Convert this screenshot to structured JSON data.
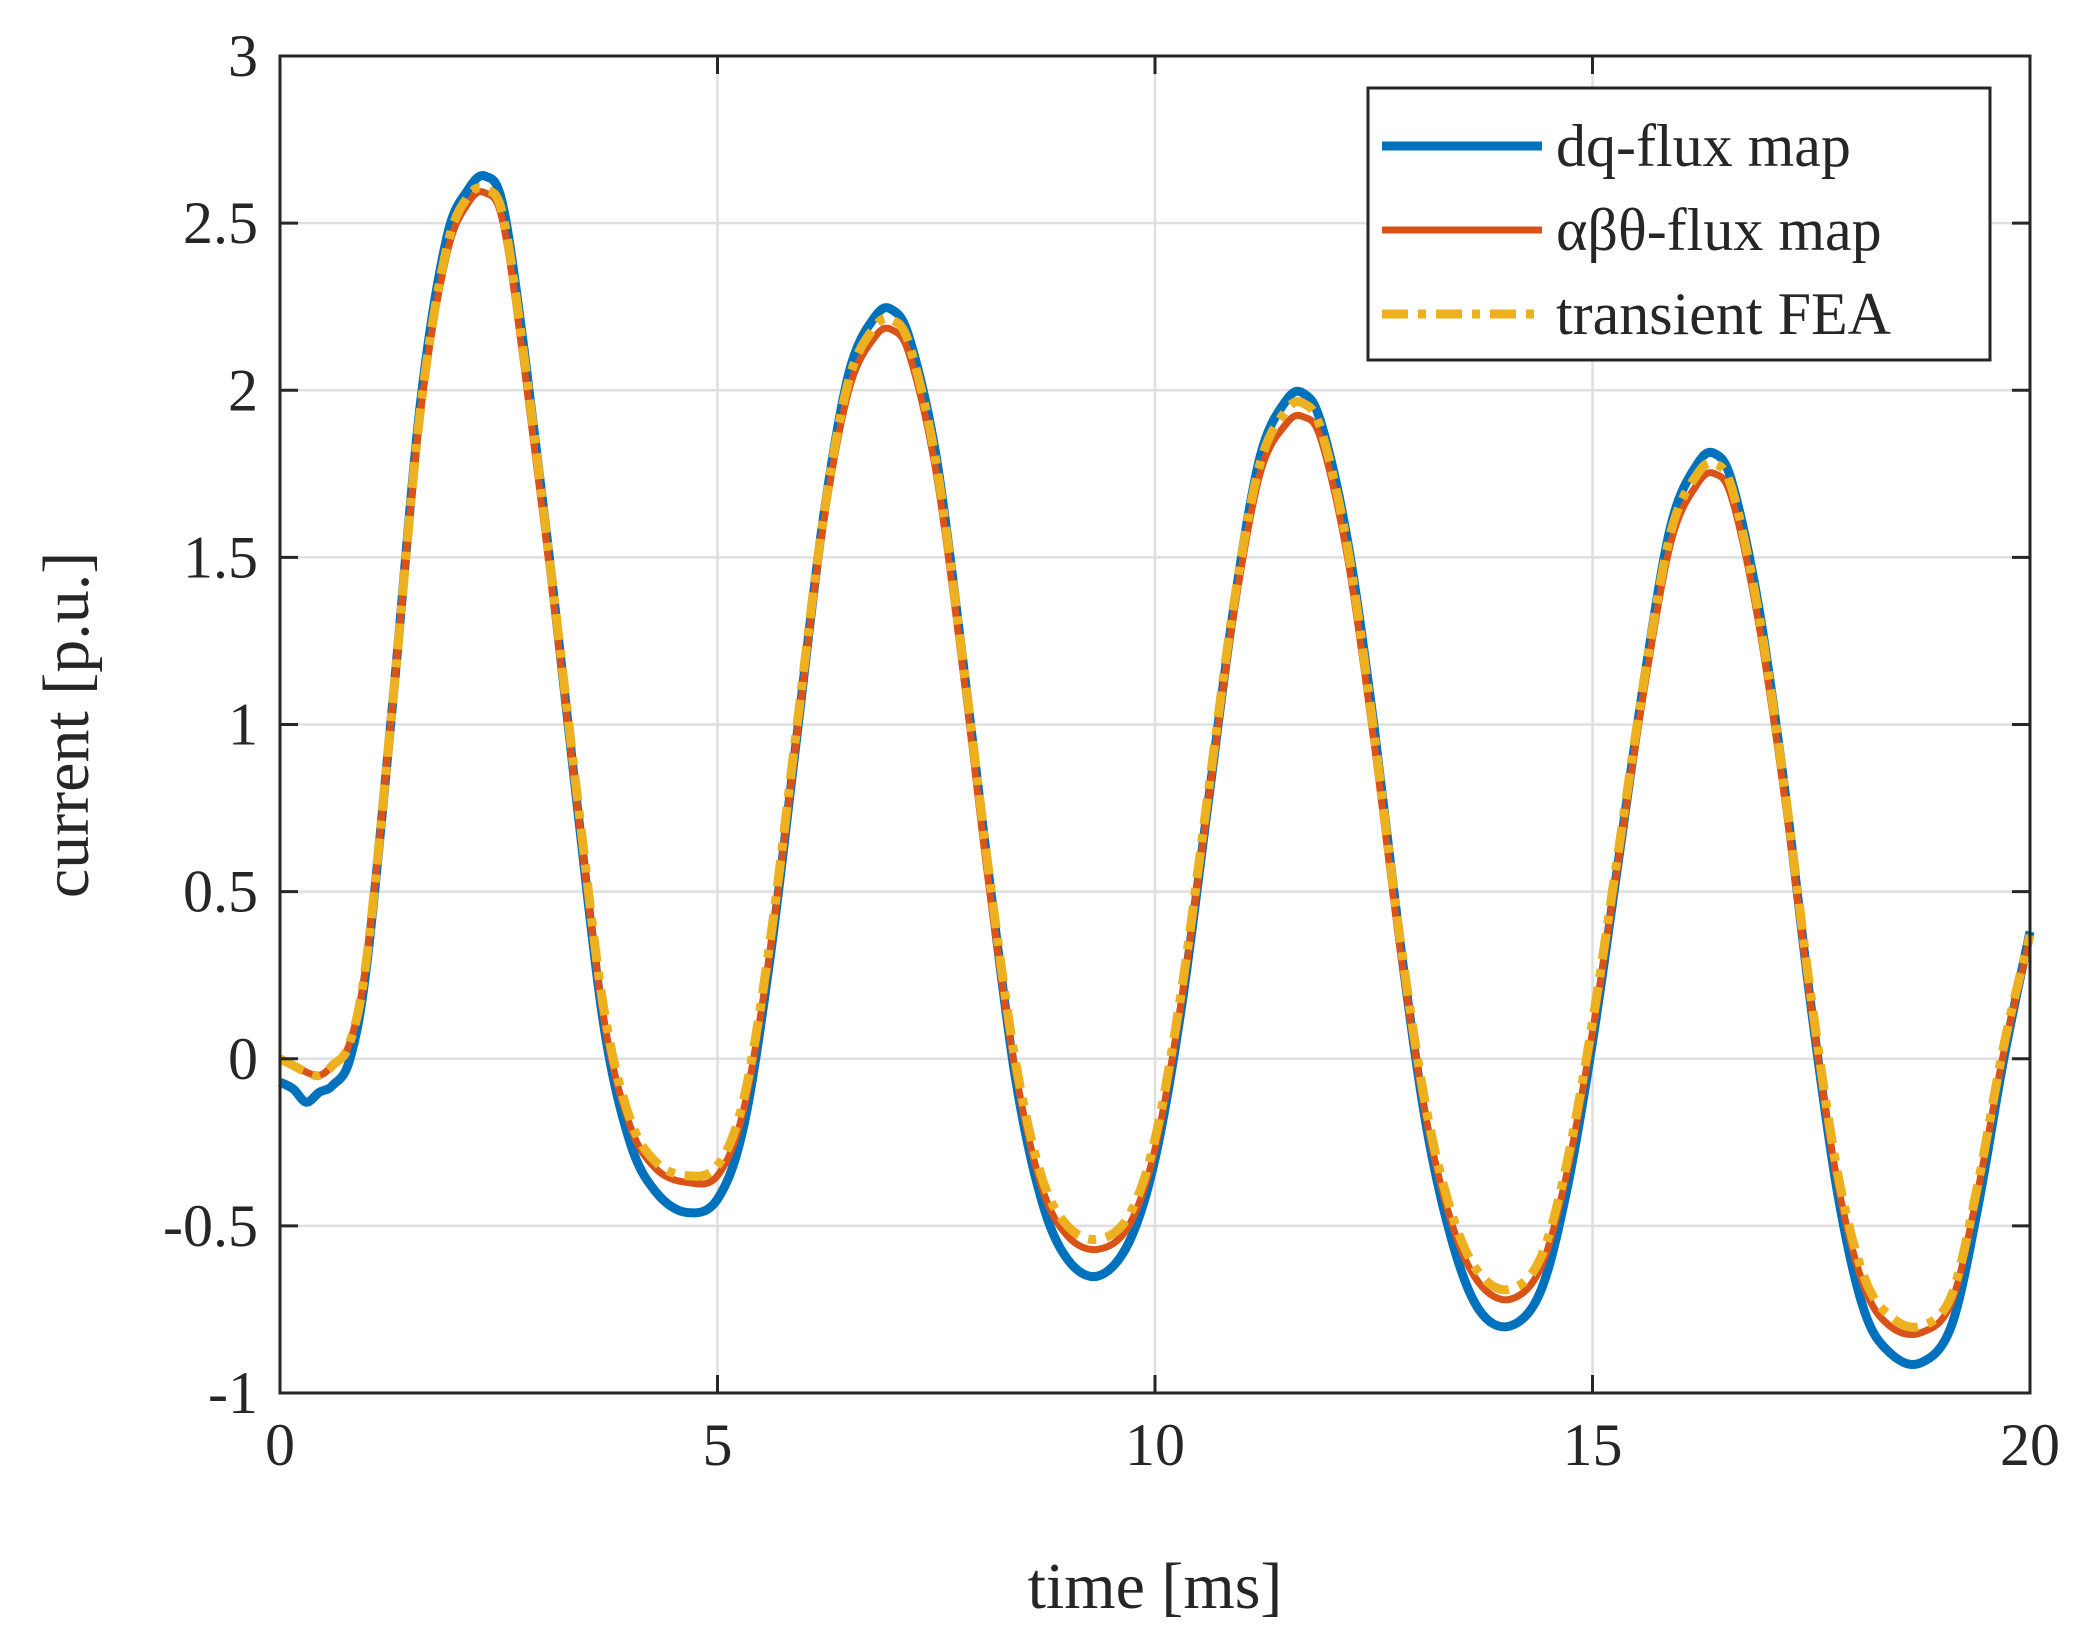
{
  "chart_data": {
    "type": "line",
    "title": "",
    "xlabel": "time [ms]",
    "ylabel": "current [p.u.]",
    "xlim": [
      0,
      20
    ],
    "ylim": [
      -1,
      3
    ],
    "xticks": [
      0,
      5,
      10,
      15,
      20
    ],
    "xtick_labels": [
      "0",
      "5",
      "10",
      "15",
      "20"
    ],
    "yticks": [
      -1,
      -0.5,
      0,
      0.5,
      1,
      1.5,
      2,
      2.5,
      3
    ],
    "ytick_labels": [
      "-1",
      "-0.5",
      "0",
      "0.5",
      "1",
      "1.5",
      "2",
      "2.5",
      "3"
    ],
    "grid": true,
    "legend_position": "top-right",
    "series": [
      {
        "name": "dq-flux map",
        "color": "#0072BD",
        "style": "solid",
        "x": [
          0,
          0.15,
          0.3,
          0.45,
          0.6,
          0.8,
          1.0,
          1.3,
          1.6,
          1.9,
          2.15,
          2.35,
          2.55,
          2.8,
          3.1,
          3.4,
          3.7,
          4.0,
          4.3,
          4.65,
          5.0,
          5.3,
          5.6,
          5.9,
          6.2,
          6.5,
          6.8,
          7.0,
          7.2,
          7.5,
          7.8,
          8.1,
          8.4,
          8.7,
          9.0,
          9.35,
          9.7,
          10.0,
          10.3,
          10.6,
          10.9,
          11.2,
          11.5,
          11.7,
          11.9,
          12.2,
          12.5,
          12.8,
          13.1,
          13.4,
          13.7,
          14.05,
          14.4,
          14.7,
          15.0,
          15.3,
          15.6,
          15.9,
          16.2,
          16.4,
          16.6,
          16.9,
          17.2,
          17.5,
          17.8,
          18.1,
          18.4,
          18.75,
          19.1,
          19.4,
          19.7,
          20.0
        ],
        "y": [
          -0.07,
          -0.09,
          -0.13,
          -0.1,
          -0.08,
          0.0,
          0.3,
          1.1,
          1.95,
          2.45,
          2.6,
          2.64,
          2.55,
          2.1,
          1.45,
          0.75,
          0.1,
          -0.25,
          -0.4,
          -0.46,
          -0.42,
          -0.2,
          0.3,
          0.95,
          1.6,
          2.05,
          2.22,
          2.24,
          2.15,
          1.8,
          1.2,
          0.55,
          -0.05,
          -0.42,
          -0.6,
          -0.65,
          -0.55,
          -0.3,
          0.15,
          0.75,
          1.35,
          1.8,
          1.97,
          1.99,
          1.9,
          1.55,
          1.0,
          0.35,
          -0.2,
          -0.55,
          -0.75,
          -0.8,
          -0.7,
          -0.4,
          0.05,
          0.6,
          1.15,
          1.6,
          1.78,
          1.81,
          1.72,
          1.35,
          0.8,
          0.15,
          -0.4,
          -0.75,
          -0.88,
          -0.91,
          -0.8,
          -0.45,
          0.0,
          0.38
        ]
      },
      {
        "name": "αβθ-flux map",
        "color": "#D95319",
        "style": "solid",
        "x": [
          0,
          0.15,
          0.3,
          0.45,
          0.6,
          0.8,
          1.0,
          1.3,
          1.6,
          1.9,
          2.15,
          2.35,
          2.55,
          2.8,
          3.1,
          3.4,
          3.7,
          4.0,
          4.3,
          4.65,
          5.0,
          5.3,
          5.6,
          5.9,
          6.2,
          6.5,
          6.8,
          7.0,
          7.2,
          7.5,
          7.8,
          8.1,
          8.4,
          8.7,
          9.0,
          9.35,
          9.7,
          10.0,
          10.3,
          10.6,
          10.9,
          11.2,
          11.5,
          11.7,
          11.9,
          12.2,
          12.5,
          12.8,
          13.1,
          13.4,
          13.7,
          14.05,
          14.4,
          14.7,
          15.0,
          15.3,
          15.6,
          15.9,
          16.2,
          16.4,
          16.6,
          16.9,
          17.2,
          17.5,
          17.8,
          18.1,
          18.4,
          18.75,
          19.1,
          19.4,
          19.7,
          20.0
        ],
        "y": [
          0.0,
          -0.02,
          -0.04,
          -0.05,
          -0.02,
          0.05,
          0.32,
          1.1,
          1.92,
          2.4,
          2.56,
          2.59,
          2.5,
          2.05,
          1.42,
          0.75,
          0.12,
          -0.2,
          -0.33,
          -0.37,
          -0.35,
          -0.15,
          0.32,
          0.95,
          1.58,
          2.0,
          2.16,
          2.18,
          2.1,
          1.75,
          1.17,
          0.52,
          -0.03,
          -0.38,
          -0.53,
          -0.57,
          -0.5,
          -0.27,
          0.17,
          0.75,
          1.33,
          1.75,
          1.9,
          1.92,
          1.85,
          1.5,
          0.95,
          0.33,
          -0.18,
          -0.5,
          -0.67,
          -0.72,
          -0.63,
          -0.35,
          0.08,
          0.6,
          1.12,
          1.55,
          1.72,
          1.75,
          1.67,
          1.3,
          0.77,
          0.15,
          -0.37,
          -0.68,
          -0.8,
          -0.82,
          -0.73,
          -0.4,
          0.02,
          0.36
        ]
      },
      {
        "name": "transient FEA",
        "color": "#EDB120",
        "style": "dashdot",
        "x": [
          0,
          0.15,
          0.3,
          0.45,
          0.6,
          0.8,
          1.0,
          1.3,
          1.6,
          1.9,
          2.15,
          2.35,
          2.55,
          2.8,
          3.1,
          3.4,
          3.7,
          4.0,
          4.3,
          4.65,
          5.0,
          5.3,
          5.6,
          5.9,
          6.2,
          6.5,
          6.8,
          7.0,
          7.2,
          7.5,
          7.8,
          8.1,
          8.4,
          8.7,
          9.0,
          9.35,
          9.7,
          10.0,
          10.3,
          10.6,
          10.9,
          11.2,
          11.5,
          11.7,
          11.9,
          12.2,
          12.5,
          12.8,
          13.1,
          13.4,
          13.7,
          14.05,
          14.4,
          14.7,
          15.0,
          15.3,
          15.6,
          15.9,
          16.2,
          16.4,
          16.6,
          16.9,
          17.2,
          17.5,
          17.8,
          18.1,
          18.4,
          18.75,
          19.1,
          19.4,
          19.7,
          20.0
        ],
        "y": [
          0.0,
          -0.02,
          -0.04,
          -0.05,
          -0.02,
          0.05,
          0.32,
          1.1,
          1.93,
          2.42,
          2.58,
          2.6,
          2.52,
          2.08,
          1.45,
          0.78,
          0.15,
          -0.18,
          -0.31,
          -0.35,
          -0.32,
          -0.12,
          0.35,
          0.98,
          1.6,
          2.03,
          2.19,
          2.21,
          2.13,
          1.78,
          1.2,
          0.56,
          0.0,
          -0.35,
          -0.5,
          -0.54,
          -0.47,
          -0.24,
          0.2,
          0.78,
          1.36,
          1.78,
          1.94,
          1.96,
          1.88,
          1.53,
          0.98,
          0.36,
          -0.15,
          -0.47,
          -0.64,
          -0.69,
          -0.6,
          -0.32,
          0.11,
          0.63,
          1.15,
          1.58,
          1.75,
          1.78,
          1.7,
          1.33,
          0.8,
          0.18,
          -0.34,
          -0.65,
          -0.77,
          -0.8,
          -0.71,
          -0.38,
          0.04,
          0.37
        ]
      }
    ]
  }
}
